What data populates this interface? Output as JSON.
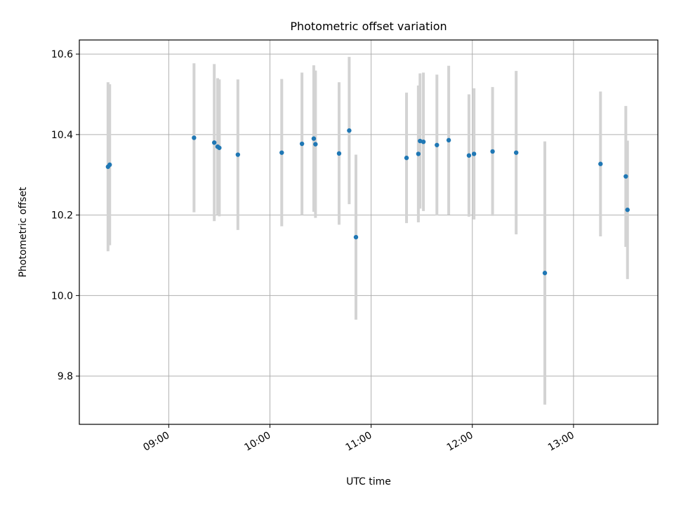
{
  "chart_data": {
    "type": "scatter",
    "title": "Photometric offset variation",
    "xlabel": "UTC time",
    "ylabel": "Photometric offset",
    "grid": true,
    "xlim": [
      "08:07",
      "13:50"
    ],
    "ylim": [
      9.68,
      10.635
    ],
    "x_ticks": [
      "09:00",
      "10:00",
      "11:00",
      "12:00",
      "13:00"
    ],
    "y_ticks": [
      "9.8",
      "10.0",
      "10.2",
      "10.4",
      "10.6"
    ],
    "marker_color": "#1f77b4",
    "errorbar_color": "#d3d3d3",
    "points": [
      {
        "x": "08:24",
        "y": 10.32,
        "yerr": 0.21
      },
      {
        "x": "08:25",
        "y": 10.325,
        "yerr": 0.2
      },
      {
        "x": "09:15",
        "y": 10.392,
        "yerr": 0.185
      },
      {
        "x": "09:27",
        "y": 10.38,
        "yerr": 0.195
      },
      {
        "x": "09:29",
        "y": 10.37,
        "yerr": 0.17
      },
      {
        "x": "09:30",
        "y": 10.367,
        "yerr": 0.17
      },
      {
        "x": "09:41",
        "y": 10.35,
        "yerr": 0.187
      },
      {
        "x": "10:07",
        "y": 10.355,
        "yerr": 0.183
      },
      {
        "x": "10:19",
        "y": 10.377,
        "yerr": 0.177
      },
      {
        "x": "10:26",
        "y": 10.39,
        "yerr": 0.182
      },
      {
        "x": "10:27",
        "y": 10.376,
        "yerr": 0.183
      },
      {
        "x": "10:41",
        "y": 10.353,
        "yerr": 0.177
      },
      {
        "x": "10:47",
        "y": 10.41,
        "yerr": 0.183
      },
      {
        "x": "10:51",
        "y": 10.145,
        "yerr": 0.205
      },
      {
        "x": "11:21",
        "y": 10.342,
        "yerr": 0.162
      },
      {
        "x": "11:28",
        "y": 10.352,
        "yerr": 0.17
      },
      {
        "x": "11:29",
        "y": 10.384,
        "yerr": 0.168
      },
      {
        "x": "11:31",
        "y": 10.382,
        "yerr": 0.172
      },
      {
        "x": "11:39",
        "y": 10.374,
        "yerr": 0.175
      },
      {
        "x": "11:46",
        "y": 10.386,
        "yerr": 0.185
      },
      {
        "x": "11:58",
        "y": 10.348,
        "yerr": 0.152
      },
      {
        "x": "12:01",
        "y": 10.352,
        "yerr": 0.163
      },
      {
        "x": "12:12",
        "y": 10.358,
        "yerr": 0.16
      },
      {
        "x": "12:26",
        "y": 10.355,
        "yerr": 0.203
      },
      {
        "x": "12:43",
        "y": 10.056,
        "yerr": 0.327
      },
      {
        "x": "13:16",
        "y": 10.327,
        "yerr": 0.18
      },
      {
        "x": "13:31",
        "y": 10.296,
        "yerr": 0.175
      },
      {
        "x": "13:32",
        "y": 10.213,
        "yerr": 0.172
      }
    ]
  }
}
